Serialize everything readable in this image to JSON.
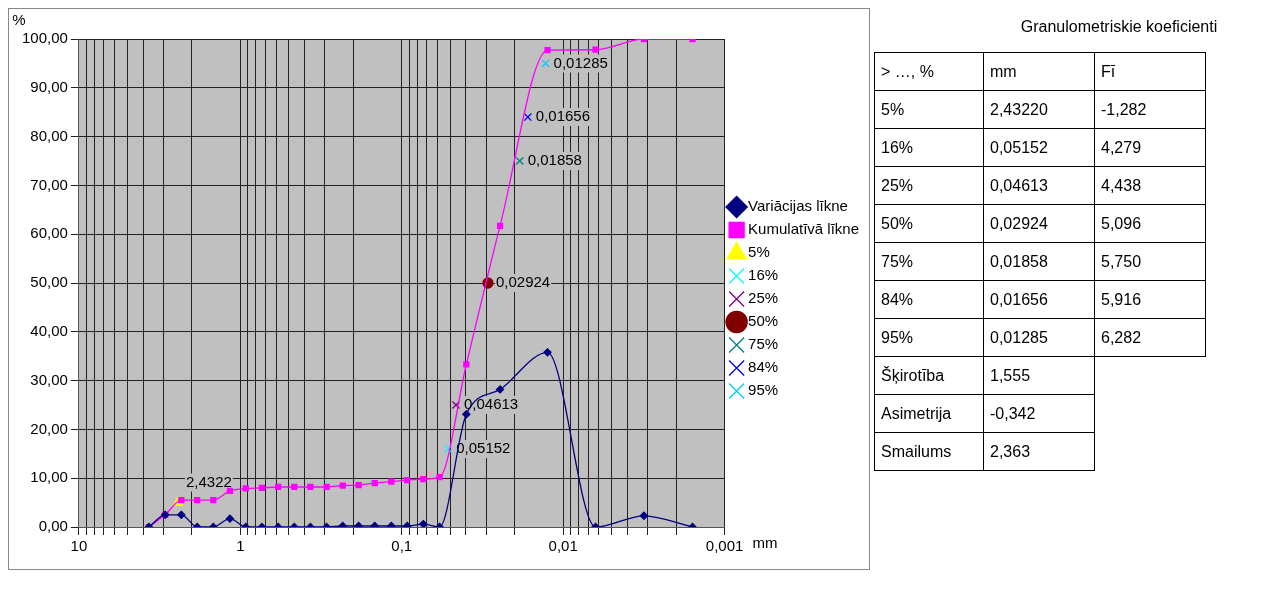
{
  "chart_data": [
    {
      "type": "line",
      "ylabel": "%",
      "xlabel": "mm",
      "log": "x",
      "grid": true,
      "legend": "right",
      "x": [
        3.68,
        2.92,
        2.32,
        1.85,
        1.47,
        1.16,
        0.925,
        0.735,
        0.583,
        0.463,
        0.368,
        0.292,
        0.232,
        0.185,
        0.147,
        0.116,
        0.0925,
        0.0735,
        0.0583,
        0.0398,
        0.0246,
        0.0125,
        0.0063,
        0.00316,
        0.00158
      ],
      "series": [
        {
          "name": "Variācijas līkne",
          "color": "#000080",
          "marker": "diamond",
          "values": [
            0,
            2.5,
            2.5,
            0,
            0,
            1.7,
            0,
            0,
            0,
            0,
            0,
            0,
            0.2,
            0.2,
            0.2,
            0.2,
            0.2,
            0.6,
            0,
            23.1,
            28.2,
            35.8,
            0,
            2.3,
            0
          ]
        },
        {
          "name": "Kumulatīvā līkne",
          "color": "#ff00ff",
          "marker": "square",
          "values": [
            0,
            2.5,
            5.5,
            5.5,
            5.5,
            7.4,
            7.9,
            8.0,
            8.2,
            8.2,
            8.2,
            8.2,
            8.5,
            8.6,
            9.0,
            9.3,
            9.6,
            9.8,
            10.2,
            33.3,
            61.7,
            97.7,
            97.8,
            100,
            100
          ]
        },
        {
          "name": "5%",
          "type": "scatter",
          "color": "#ffff00",
          "marker": "triangle",
          "x": [
            2.4322
          ],
          "values": [
            5
          ]
        },
        {
          "name": "16%",
          "type": "scatter",
          "color": "#00ffff",
          "marker": "cross",
          "x": [
            0.05152
          ],
          "values": [
            16
          ]
        },
        {
          "name": "25%",
          "type": "scatter",
          "color": "#800080",
          "marker": "cross",
          "x": [
            0.04613
          ],
          "values": [
            25
          ]
        },
        {
          "name": "50%",
          "type": "scatter",
          "color": "#800000",
          "marker": "circle",
          "x": [
            0.02924
          ],
          "values": [
            50
          ]
        },
        {
          "name": "75%",
          "type": "scatter",
          "color": "#008080",
          "marker": "cross",
          "x": [
            0.01858
          ],
          "values": [
            75
          ]
        },
        {
          "name": "84%",
          "type": "scatter",
          "color": "#0000ff",
          "marker": "cross",
          "x": [
            0.01656
          ],
          "values": [
            84
          ]
        },
        {
          "name": "95%",
          "type": "scatter",
          "color": "#00ccff",
          "marker": "cross",
          "x": [
            0.01285
          ],
          "values": [
            95
          ]
        }
      ],
      "annotations": [
        {
          "text": "2,4322",
          "x": 2.4322,
          "y": 5
        },
        {
          "text": "0,05152",
          "x": 0.05152,
          "y": 16
        },
        {
          "text": "0,04613",
          "x": 0.04613,
          "y": 25
        },
        {
          "text": "0,02924",
          "x": 0.02924,
          "y": 50
        },
        {
          "text": "0,01858",
          "x": 0.01858,
          "y": 75
        },
        {
          "text": "0,01656",
          "x": 0.01656,
          "y": 84
        },
        {
          "text": "0,01285",
          "x": 0.01285,
          "y": 95
        }
      ],
      "xlim": [
        10,
        0.001
      ],
      "xticks": [
        {
          "value": 10,
          "label": "10"
        },
        {
          "value": 9,
          "label": null
        },
        {
          "value": 8,
          "label": null
        },
        {
          "value": 7,
          "label": null
        },
        {
          "value": 6,
          "label": null
        },
        {
          "value": 5,
          "label": null
        },
        {
          "value": 4,
          "label": null
        },
        {
          "value": 3,
          "label": null
        },
        {
          "value": 2,
          "label": null
        },
        {
          "value": 1,
          "label": "1"
        },
        {
          "value": 0.9,
          "label": null
        },
        {
          "value": 0.8,
          "label": null
        },
        {
          "value": 0.7,
          "label": null
        },
        {
          "value": 0.6,
          "label": null
        },
        {
          "value": 0.5,
          "label": null
        },
        {
          "value": 0.4,
          "label": null
        },
        {
          "value": 0.3,
          "label": null
        },
        {
          "value": 0.2,
          "label": null
        },
        {
          "value": 0.1,
          "label": "0,1"
        },
        {
          "value": 0.09,
          "label": null
        },
        {
          "value": 0.08,
          "label": null
        },
        {
          "value": 0.07,
          "label": null
        },
        {
          "value": 0.06,
          "label": null
        },
        {
          "value": 0.05,
          "label": null
        },
        {
          "value": 0.04,
          "label": null
        },
        {
          "value": 0.03,
          "label": null
        },
        {
          "value": 0.02,
          "label": null
        },
        {
          "value": 0.01,
          "label": "0,01"
        },
        {
          "value": 0.009,
          "label": null
        },
        {
          "value": 0.008,
          "label": null
        },
        {
          "value": 0.007,
          "label": null
        },
        {
          "value": 0.006,
          "label": null
        },
        {
          "value": 0.005,
          "label": null
        },
        {
          "value": 0.004,
          "label": null
        },
        {
          "value": 0.003,
          "label": null
        },
        {
          "value": 0.002,
          "label": null
        },
        {
          "value": 0.001,
          "label": "0,001"
        }
      ],
      "ylim": [
        0,
        100
      ],
      "yticks": [
        {
          "value": 0,
          "label": "0,00"
        },
        {
          "value": 10,
          "label": "10,00"
        },
        {
          "value": 20,
          "label": "20,00"
        },
        {
          "value": 30,
          "label": "30,00"
        },
        {
          "value": 40,
          "label": "40,00"
        },
        {
          "value": 50,
          "label": "50,00"
        },
        {
          "value": 60,
          "label": "60,00"
        },
        {
          "value": 70,
          "label": "70,00"
        },
        {
          "value": 80,
          "label": "80,00"
        },
        {
          "value": 90,
          "label": "90,00"
        },
        {
          "value": 100,
          "label": "100,00"
        }
      ]
    },
    {
      "type": "other",
      "title": "Granulometriskie koeficienti",
      "cell_labels": [
        [
          "> …, %",
          "mm",
          "Fī"
        ],
        [
          "5%",
          "2,43220",
          "-1,282"
        ],
        [
          "16%",
          "0,05152",
          "4,279"
        ],
        [
          "25%",
          "0,04613",
          "4,438"
        ],
        [
          "50%",
          "0,02924",
          "5,096"
        ],
        [
          "75%",
          "0,01858",
          "5,750"
        ],
        [
          "84%",
          "0,01656",
          "5,916"
        ],
        [
          "95%",
          "0,01285",
          "6,282"
        ],
        [
          "Šķirotība",
          "1,555",
          null
        ],
        [
          "Asimetrija",
          "-0,342",
          null
        ],
        [
          "Smailums",
          "2,363",
          null
        ]
      ]
    }
  ]
}
